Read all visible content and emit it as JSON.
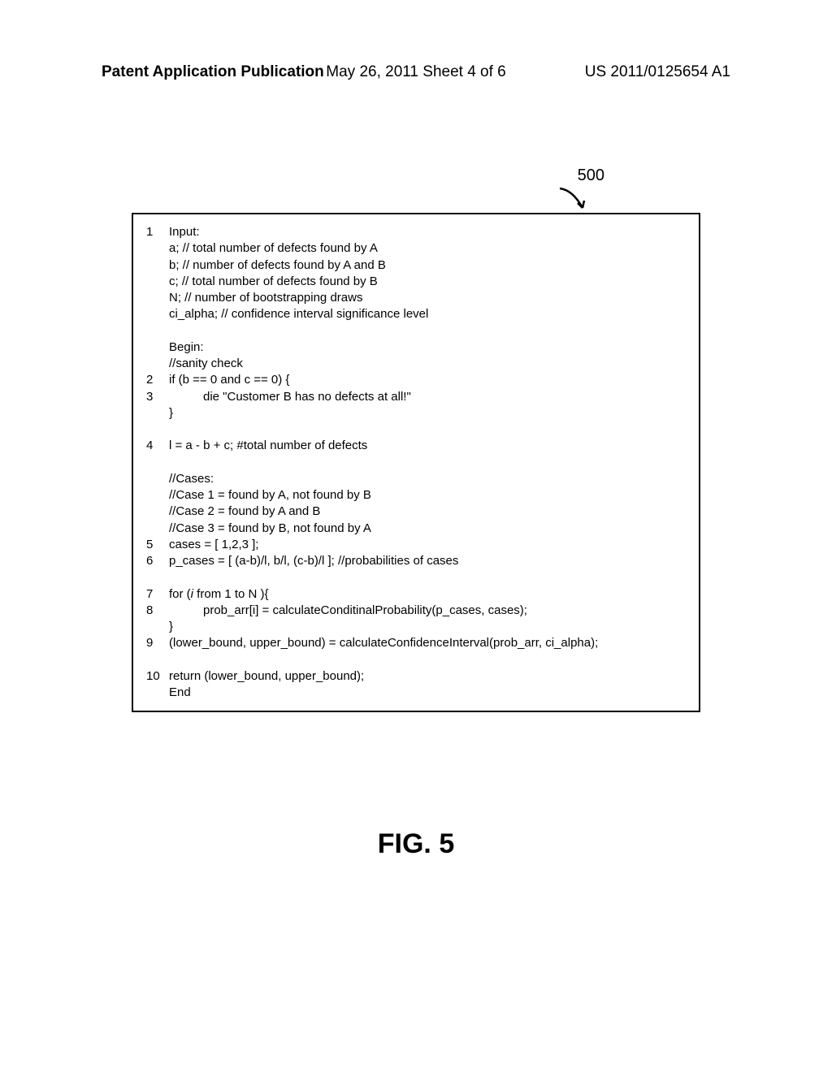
{
  "header": {
    "left": "Patent Application Publication",
    "center": "May 26, 2011  Sheet 4 of 6",
    "right": "US 2011/0125654 A1"
  },
  "ref_label": "500",
  "code": {
    "lines": [
      {
        "num": "1",
        "text": "Input:"
      },
      {
        "num": "",
        "text": "a; // total number of defects found by A"
      },
      {
        "num": "",
        "text": "b; // number of defects found by A and B"
      },
      {
        "num": "",
        "text": "c; // total number of defects found by B"
      },
      {
        "num": "",
        "text": "N; // number of bootstrapping draws"
      },
      {
        "num": "",
        "text": "ci_alpha; // confidence interval significance level"
      },
      {
        "num": "",
        "text": ""
      },
      {
        "num": "",
        "text": "Begin:"
      },
      {
        "num": "",
        "text": "//sanity check"
      },
      {
        "num": "2",
        "text": "if (b == 0 and c == 0) {"
      },
      {
        "num": "3",
        "text": "die \"Customer B has no defects at all!\"",
        "indent": true
      },
      {
        "num": "",
        "text": "}"
      },
      {
        "num": "",
        "text": ""
      },
      {
        "num": "4",
        "text": "l = a - b + c; #total number of defects"
      },
      {
        "num": "",
        "text": ""
      },
      {
        "num": "",
        "text": "//Cases:"
      },
      {
        "num": "",
        "text": "//Case 1 = found by A, not found by B"
      },
      {
        "num": "",
        "text": "//Case 2 = found by A and B"
      },
      {
        "num": "",
        "text": "//Case 3 = found by B, not found by A"
      },
      {
        "num": "5",
        "text": "cases = [ 1,2,3 ];"
      },
      {
        "num": "6",
        "text": "p_cases = [ (a-b)/l, b/l, (c-b)/l ]; //probabilities of cases"
      },
      {
        "num": "",
        "text": ""
      },
      {
        "num": "7",
        "text_html": "for (<span class=\"italic\">i</span> from 1 to N ){"
      },
      {
        "num": "8",
        "text": "prob_arr[i] = calculateConditinalProbability(p_cases, cases);",
        "indent": true
      },
      {
        "num": "",
        "text": "}"
      },
      {
        "num": "9",
        "text": "(lower_bound, upper_bound) = calculateConfidenceInterval(prob_arr, ci_alpha);"
      },
      {
        "num": "",
        "text": ""
      },
      {
        "num": "10",
        "text": "return (lower_bound, upper_bound);"
      },
      {
        "num": "",
        "text": "End"
      }
    ]
  },
  "fig_caption": "FIG. 5",
  "colors": {
    "border": "#000000",
    "text": "#000000",
    "background": "#ffffff"
  }
}
